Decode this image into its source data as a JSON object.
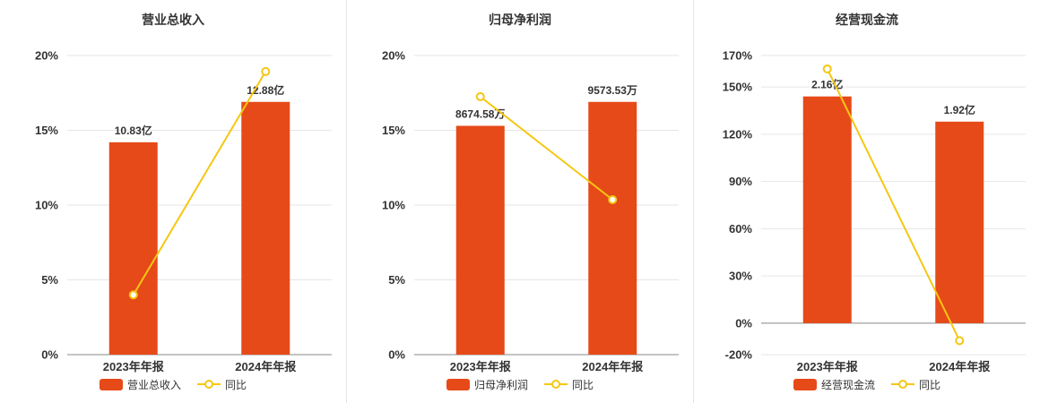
{
  "colors": {
    "bar": "#e64a19",
    "line": "#f5c713",
    "grid": "#e6e6e6",
    "axis": "#888888",
    "text": "#333333"
  },
  "chart_data": [
    {
      "type": "bar+line",
      "title": "营业总收入",
      "categories": [
        "2023年年报",
        "2024年年报"
      ],
      "bar_series": {
        "name": "营业总收入",
        "labels": [
          "10.83亿",
          "12.88亿"
        ],
        "display_pct": [
          14.2,
          16.9
        ]
      },
      "line_series": {
        "name": "同比",
        "values_pct": [
          4.0,
          18.93
        ]
      },
      "ylim": [
        0,
        20
      ],
      "yticks": [
        0,
        5,
        10,
        15,
        20
      ],
      "ytick_suffix": "%",
      "legend": [
        "营业总收入",
        "同比"
      ]
    },
    {
      "type": "bar+line",
      "title": "归母净利润",
      "categories": [
        "2023年年报",
        "2024年年报"
      ],
      "bar_series": {
        "name": "归母净利润",
        "labels": [
          "8674.58万",
          "9573.53万"
        ],
        "display_pct": [
          15.3,
          16.9
        ]
      },
      "line_series": {
        "name": "同比",
        "values_pct": [
          17.25,
          10.36
        ]
      },
      "ylim": [
        0,
        20
      ],
      "yticks": [
        0,
        5,
        10,
        15,
        20
      ],
      "ytick_suffix": "%",
      "legend": [
        "归母净利润",
        "同比"
      ]
    },
    {
      "type": "bar+line",
      "title": "经营现金流",
      "categories": [
        "2023年年报",
        "2024年年报"
      ],
      "bar_series": {
        "name": "经营现金流",
        "labels": [
          "2.16亿",
          "1.92亿"
        ],
        "display_pct": [
          144,
          128
        ]
      },
      "line_series": {
        "name": "同比",
        "values_pct": [
          161.5,
          -11.1
        ]
      },
      "ylim": [
        -20,
        170
      ],
      "yticks": [
        -20,
        0,
        30,
        60,
        90,
        120,
        150,
        170
      ],
      "ytick_suffix": "%",
      "legend": [
        "经营现金流",
        "同比"
      ]
    }
  ]
}
